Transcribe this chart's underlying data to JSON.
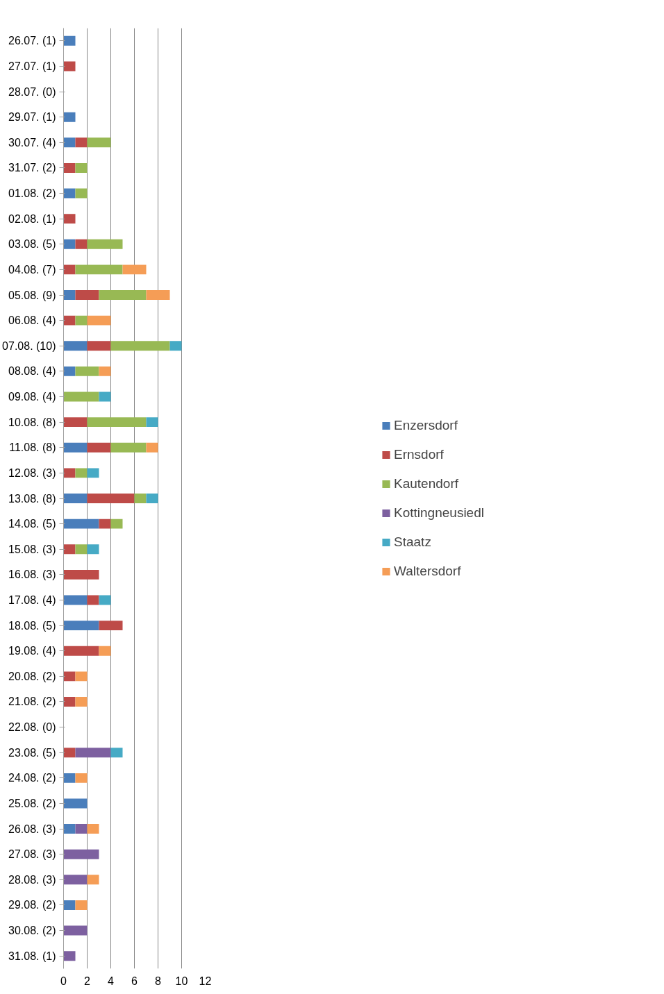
{
  "chart_data": {
    "type": "bar",
    "orientation": "horizontal",
    "stacked": true,
    "categories": [
      "26.07. (1)",
      "27.07. (1)",
      "28.07. (0)",
      "29.07. (1)",
      "30.07. (4)",
      "31.07. (2)",
      "01.08. (2)",
      "02.08. (1)",
      "03.08. (5)",
      "04.08. (7)",
      "05.08. (9)",
      "06.08. (4)",
      "07.08. (10)",
      "08.08. (4)",
      "09.08. (4)",
      "10.08. (8)",
      "11.08. (8)",
      "12.08. (3)",
      "13.08. (8)",
      "14.08. (5)",
      "15.08. (3)",
      "16.08. (3)",
      "17.08. (4)",
      "18.08. (5)",
      "19.08. (4)",
      "20.08. (2)",
      "21.08. (2)",
      "22.08. (0)",
      "23.08. (5)",
      "24.08. (2)",
      "25.08. (2)",
      "26.08. (3)",
      "27.08. (3)",
      "28.08. (3)",
      "29.08. (2)",
      "30.08. (2)",
      "31.08. (1)"
    ],
    "series": [
      {
        "name": "Enzersdorf",
        "color": "#4a7ebb",
        "values": [
          1,
          0,
          0,
          1,
          1,
          0,
          1,
          0,
          1,
          0,
          1,
          0,
          2,
          1,
          0,
          0,
          2,
          0,
          2,
          3,
          0,
          0,
          2,
          3,
          0,
          0,
          0,
          0,
          0,
          1,
          2,
          1,
          0,
          0,
          1,
          0,
          0
        ]
      },
      {
        "name": "Ernsdorf",
        "color": "#be4b48",
        "values": [
          0,
          1,
          0,
          0,
          1,
          1,
          0,
          1,
          1,
          1,
          2,
          1,
          2,
          0,
          0,
          2,
          2,
          1,
          4,
          1,
          1,
          3,
          1,
          2,
          3,
          1,
          1,
          0,
          1,
          0,
          0,
          0,
          0,
          0,
          0,
          0,
          0
        ]
      },
      {
        "name": "Kautendorf",
        "color": "#98b954",
        "values": [
          0,
          0,
          0,
          0,
          2,
          1,
          1,
          0,
          3,
          4,
          4,
          1,
          5,
          2,
          3,
          5,
          3,
          1,
          1,
          1,
          1,
          0,
          0,
          0,
          0,
          0,
          0,
          0,
          0,
          0,
          0,
          0,
          0,
          0,
          0,
          0,
          0
        ]
      },
      {
        "name": "Kottingneusiedl",
        "color": "#7d60a0",
        "values": [
          0,
          0,
          0,
          0,
          0,
          0,
          0,
          0,
          0,
          0,
          0,
          0,
          0,
          0,
          0,
          0,
          0,
          0,
          0,
          0,
          0,
          0,
          0,
          0,
          0,
          0,
          0,
          0,
          3,
          0,
          0,
          1,
          3,
          2,
          0,
          2,
          1
        ]
      },
      {
        "name": "Staatz",
        "color": "#46aac5",
        "values": [
          0,
          0,
          0,
          0,
          0,
          0,
          0,
          0,
          0,
          0,
          0,
          0,
          1,
          0,
          1,
          1,
          0,
          1,
          1,
          0,
          1,
          0,
          1,
          0,
          0,
          0,
          0,
          0,
          1,
          0,
          0,
          0,
          0,
          0,
          0,
          0,
          0
        ]
      },
      {
        "name": "Waltersdorf",
        "color": "#f59d56",
        "values": [
          0,
          0,
          0,
          0,
          0,
          0,
          0,
          0,
          0,
          2,
          2,
          2,
          0,
          1,
          0,
          0,
          1,
          0,
          0,
          0,
          0,
          0,
          0,
          0,
          1,
          1,
          1,
          0,
          0,
          1,
          0,
          1,
          0,
          1,
          1,
          0,
          0
        ]
      }
    ],
    "xlim": [
      0,
      12
    ],
    "xticks": [
      0,
      2,
      4,
      6,
      8,
      10,
      12
    ],
    "grid": "x",
    "legend": "right"
  }
}
